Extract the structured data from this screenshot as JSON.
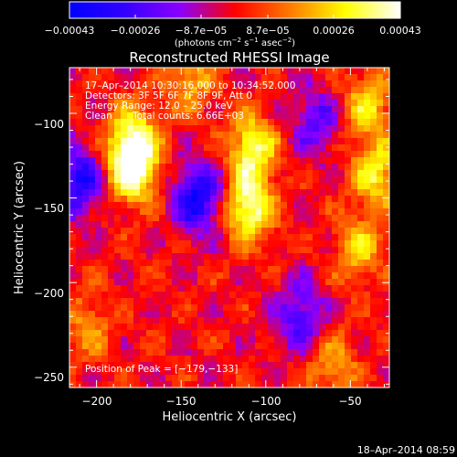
{
  "chart_data": {
    "type": "heatmap",
    "title": "Reconstructed RHESSI Image",
    "xlabel": "Heliocentric X (arcsec)",
    "ylabel": "Heliocentric Y (arcsec)",
    "xlim": [
      -216,
      -27
    ],
    "ylim": [
      -262,
      -73
    ],
    "x_ticks": [
      -200,
      -150,
      -100,
      -50
    ],
    "y_ticks": [
      -100,
      -150,
      -200,
      -250
    ],
    "x_tick_labels": [
      "−200",
      "−150",
      "−100",
      "−50"
    ],
    "y_tick_labels": [
      "−100",
      "−150",
      "−200",
      "−250"
    ],
    "colorbar": {
      "range": [
        -0.00043,
        0.00043
      ],
      "tick_labels": [
        "−0.00043",
        "−0.00026",
        "−8.7e−05",
        "8.7e−05",
        "0.00026",
        "0.00043"
      ],
      "unit_prefix": "(photons cm",
      "unit_exp1": "−2",
      "unit_mid": " s",
      "unit_exp2": "−1",
      "unit_mid2": " asec",
      "unit_exp3": "−2",
      "unit_suffix": ")",
      "colors": [
        "#0000ff",
        "#3300ff",
        "#8a00ff",
        "#ff0000",
        "#ff7a00",
        "#ffff00",
        "#ffffff"
      ]
    },
    "annotations": {
      "time_range": "17–Apr–2014 10:30:16.000 to 10:34:52.000",
      "detectors": "Detectors: 3F 5F 6F 7F 8F 9F, Att 0",
      "energy_range": "Energy Range: 12.0 – 25.0 keV",
      "clean": "Clean",
      "total_counts": "Total counts: 6.66E+03",
      "peak": "Position of Peak = [−179,−133]"
    },
    "peak_position": [
      -179,
      -133
    ],
    "sources": [
      {
        "x": -179,
        "y": -133,
        "amplitude": 1.0
      },
      {
        "x": -178,
        "y": -115,
        "amplitude": 0.75
      },
      {
        "x": -110,
        "y": -155,
        "amplitude": 0.95
      },
      {
        "x": -108,
        "y": -120,
        "amplitude": 0.8
      },
      {
        "x": -35,
        "y": -135,
        "amplitude": 0.7
      },
      {
        "x": -40,
        "y": -95,
        "amplitude": 0.6
      },
      {
        "x": -45,
        "y": -180,
        "amplitude": 0.55
      },
      {
        "x": -145,
        "y": -80,
        "amplitude": 0.5
      },
      {
        "x": -205,
        "y": -225,
        "amplitude": 0.4
      },
      {
        "x": -60,
        "y": -250,
        "amplitude": 0.45
      }
    ],
    "negative_regions": [
      {
        "x": -210,
        "y": -140,
        "amplitude": -0.8
      },
      {
        "x": -140,
        "y": -150,
        "amplitude": -0.9
      },
      {
        "x": -80,
        "y": -220,
        "amplitude": -0.6
      },
      {
        "x": -70,
        "y": -105,
        "amplitude": -0.5
      }
    ]
  },
  "timestamp": "18–Apr–2014 08:59"
}
